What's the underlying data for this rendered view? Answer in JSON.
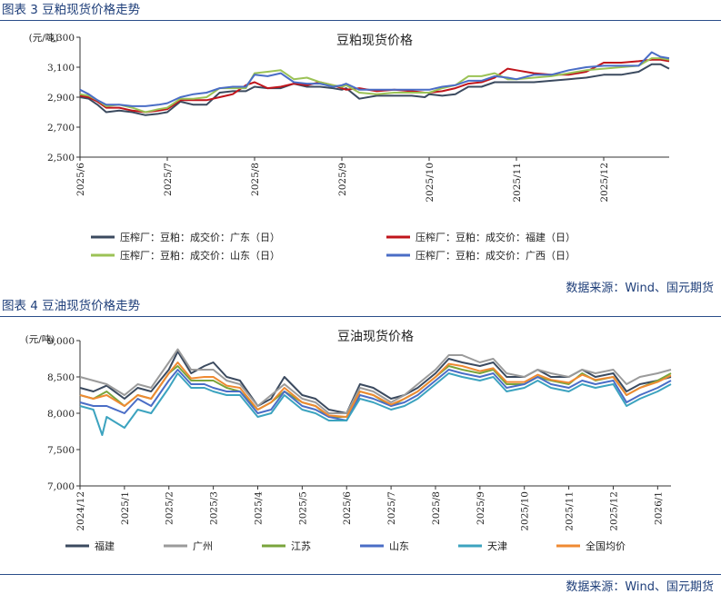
{
  "figures": [
    {
      "label": "图表 3 豆粕现货价格走势",
      "source": "数据来源：Wind、国元期货"
    },
    {
      "label": "图表 4 豆油现货价格走势",
      "source": "数据来源：Wind、国元期货"
    }
  ],
  "chart_data": [
    {
      "type": "line",
      "title": "豆粕现货价格",
      "ylabel": "(元/吨)",
      "ylim": [
        2500,
        3300
      ],
      "yticks": [
        "2,500",
        "2,700",
        "2,900",
        "3,100",
        "3,300"
      ],
      "x_ticks": [
        "2025/6",
        "2025/7",
        "2025/8",
        "2025/9",
        "2025/10",
        "2025/11",
        "2025/12"
      ],
      "x_tick_positions": [
        0,
        1,
        2,
        3,
        4,
        5,
        6
      ],
      "x_range": [
        0,
        6.75
      ],
      "legend_position": "bottom",
      "series": [
        {
          "name": "压榨厂：豆粕：成交价：广东（日）",
          "color": "#3b4a5f",
          "x": [
            0,
            0.1,
            0.2,
            0.3,
            0.45,
            0.6,
            0.75,
            0.9,
            1.0,
            1.15,
            1.3,
            1.45,
            1.6,
            1.75,
            1.9,
            2.0,
            2.15,
            2.3,
            2.45,
            2.6,
            2.75,
            2.9,
            3.0,
            3.05,
            3.2,
            3.4,
            3.6,
            3.8,
            3.95,
            4.0,
            4.15,
            4.3,
            4.45,
            4.6,
            4.75,
            4.9,
            5.0,
            5.2,
            5.4,
            5.6,
            5.8,
            6.0,
            6.2,
            6.4,
            6.55,
            6.65,
            6.75
          ],
          "y": [
            2900,
            2890,
            2850,
            2800,
            2810,
            2800,
            2780,
            2790,
            2800,
            2870,
            2850,
            2850,
            2930,
            2940,
            2940,
            2970,
            2960,
            2960,
            2990,
            2970,
            2970,
            2960,
            2950,
            2960,
            2890,
            2910,
            2910,
            2910,
            2900,
            2920,
            2910,
            2920,
            2970,
            2970,
            3000,
            3000,
            3000,
            3000,
            3010,
            3020,
            3030,
            3050,
            3050,
            3070,
            3120,
            3120,
            3090
          ]
        },
        {
          "name": "压榨厂：豆粕：成交价：福建（日）",
          "color": "#c0141b",
          "x": [
            0,
            0.1,
            0.2,
            0.3,
            0.45,
            0.6,
            0.75,
            0.9,
            1.0,
            1.15,
            1.3,
            1.45,
            1.6,
            1.75,
            1.9,
            2.0,
            2.15,
            2.3,
            2.45,
            2.6,
            2.75,
            2.9,
            3.0,
            3.05,
            3.2,
            3.4,
            3.6,
            3.8,
            3.95,
            4.0,
            4.15,
            4.3,
            4.45,
            4.6,
            4.75,
            4.9,
            5.0,
            5.2,
            5.4,
            5.6,
            5.8,
            6.0,
            6.2,
            6.4,
            6.55,
            6.65,
            6.75
          ],
          "y": [
            2910,
            2900,
            2870,
            2830,
            2830,
            2810,
            2800,
            2810,
            2820,
            2880,
            2880,
            2880,
            2900,
            2920,
            2980,
            3000,
            2960,
            2970,
            2990,
            2980,
            3000,
            2980,
            2960,
            2950,
            2960,
            2940,
            2950,
            2940,
            2930,
            2930,
            2940,
            2960,
            2990,
            3000,
            3030,
            3090,
            3080,
            3060,
            3050,
            3050,
            3070,
            3130,
            3130,
            3140,
            3150,
            3150,
            3140
          ]
        },
        {
          "name": "压榨厂：豆粕：成交价：山东（日）",
          "color": "#9bc256",
          "x": [
            0,
            0.1,
            0.2,
            0.3,
            0.45,
            0.6,
            0.75,
            0.9,
            1.0,
            1.15,
            1.3,
            1.45,
            1.6,
            1.75,
            1.9,
            2.0,
            2.15,
            2.3,
            2.45,
            2.6,
            2.75,
            2.9,
            3.0,
            3.05,
            3.2,
            3.4,
            3.6,
            3.8,
            3.95,
            4.0,
            4.15,
            4.3,
            4.45,
            4.6,
            4.75,
            4.9,
            5.0,
            5.2,
            5.4,
            5.6,
            5.8,
            6.0,
            6.2,
            6.4,
            6.55,
            6.65,
            6.75
          ],
          "y": [
            2920,
            2910,
            2880,
            2840,
            2850,
            2830,
            2800,
            2820,
            2830,
            2890,
            2890,
            2900,
            2960,
            2960,
            2960,
            3060,
            3070,
            3080,
            3020,
            3030,
            3000,
            2980,
            2970,
            2980,
            2930,
            2920,
            2930,
            2930,
            2930,
            2930,
            2960,
            2980,
            3040,
            3040,
            3060,
            3020,
            3020,
            3030,
            3040,
            3060,
            3080,
            3090,
            3100,
            3110,
            3160,
            3160,
            3150
          ]
        },
        {
          "name": "压榨厂：豆粕：成交价：广西（日）",
          "color": "#4a6dc6",
          "x": [
            0,
            0.1,
            0.2,
            0.3,
            0.45,
            0.6,
            0.75,
            0.9,
            1.0,
            1.15,
            1.3,
            1.45,
            1.6,
            1.75,
            1.9,
            2.0,
            2.15,
            2.3,
            2.45,
            2.6,
            2.75,
            2.9,
            3.0,
            3.05,
            3.2,
            3.4,
            3.6,
            3.8,
            3.95,
            4.0,
            4.15,
            4.3,
            4.45,
            4.6,
            4.75,
            4.9,
            5.0,
            5.2,
            5.4,
            5.6,
            5.8,
            6.0,
            6.2,
            6.4,
            6.55,
            6.65,
            6.75
          ],
          "y": [
            2950,
            2920,
            2880,
            2850,
            2850,
            2840,
            2840,
            2850,
            2860,
            2900,
            2920,
            2930,
            2960,
            2970,
            2970,
            3050,
            3040,
            3060,
            3000,
            2990,
            2990,
            2970,
            2980,
            2990,
            2950,
            2950,
            2950,
            2950,
            2950,
            2950,
            2970,
            2980,
            3010,
            3010,
            3040,
            3030,
            3020,
            3050,
            3050,
            3080,
            3100,
            3110,
            3110,
            3110,
            3200,
            3170,
            3160
          ]
        }
      ]
    },
    {
      "type": "line",
      "title": "豆油现货价格",
      "ylabel": "(元/吨)",
      "ylim": [
        7000,
        9000
      ],
      "yticks": [
        "7,000",
        "7,500",
        "8,000",
        "8,500",
        "9,000"
      ],
      "x_ticks": [
        "2024/12",
        "2025/1",
        "2025/2",
        "2025/3",
        "2025/4",
        "2025/5",
        "2025/6",
        "2025/7",
        "2025/8",
        "2025/9",
        "2025/10",
        "2025/11",
        "2025/12",
        "2026/1"
      ],
      "x_tick_positions": [
        0,
        1,
        2,
        3,
        4,
        5,
        6,
        7,
        8,
        9,
        10,
        11,
        12,
        13
      ],
      "x_range": [
        0,
        13.3
      ],
      "legend_position": "bottom",
      "series": [
        {
          "name": "福建",
          "color": "#3b4a5f",
          "x": [
            0,
            0.3,
            0.6,
            1.0,
            1.3,
            1.6,
            2.0,
            2.2,
            2.5,
            2.8,
            3.0,
            3.3,
            3.6,
            4.0,
            4.3,
            4.6,
            5.0,
            5.3,
            5.6,
            6.0,
            6.3,
            6.6,
            7.0,
            7.3,
            7.6,
            8.0,
            8.3,
            8.6,
            9.0,
            9.3,
            9.6,
            10.0,
            10.3,
            10.6,
            11.0,
            11.3,
            11.6,
            12.0,
            12.3,
            12.6,
            13.0,
            13.3
          ],
          "y": [
            8350,
            8300,
            8380,
            8200,
            8350,
            8300,
            8600,
            8850,
            8550,
            8650,
            8700,
            8500,
            8450,
            8100,
            8200,
            8500,
            8250,
            8200,
            8050,
            8000,
            8400,
            8350,
            8200,
            8250,
            8350,
            8550,
            8750,
            8700,
            8650,
            8700,
            8500,
            8500,
            8600,
            8500,
            8500,
            8600,
            8500,
            8550,
            8300,
            8400,
            8450,
            8500
          ]
        },
        {
          "name": "广州",
          "color": "#9b9b9b",
          "x": [
            0,
            0.3,
            0.6,
            1.0,
            1.3,
            1.6,
            2.0,
            2.2,
            2.5,
            2.8,
            3.0,
            3.3,
            3.6,
            4.0,
            4.3,
            4.6,
            5.0,
            5.3,
            5.6,
            6.0,
            6.3,
            6.6,
            7.0,
            7.3,
            7.6,
            8.0,
            8.3,
            8.6,
            9.0,
            9.3,
            9.6,
            10.0,
            10.3,
            10.6,
            11.0,
            11.3,
            11.6,
            12.0,
            12.3,
            12.6,
            13.0,
            13.3
          ],
          "y": [
            8500,
            8450,
            8400,
            8250,
            8400,
            8350,
            8700,
            8880,
            8600,
            8600,
            8600,
            8450,
            8400,
            8100,
            8250,
            8400,
            8200,
            8150,
            8000,
            8000,
            8350,
            8300,
            8150,
            8250,
            8400,
            8600,
            8800,
            8800,
            8700,
            8750,
            8550,
            8500,
            8600,
            8550,
            8500,
            8600,
            8550,
            8600,
            8400,
            8500,
            8550,
            8600
          ]
        },
        {
          "name": "江苏",
          "color": "#7aa43c",
          "x": [
            0,
            0.3,
            0.6,
            1.0,
            1.3,
            1.6,
            2.0,
            2.2,
            2.5,
            2.8,
            3.0,
            3.3,
            3.6,
            4.0,
            4.3,
            4.6,
            5.0,
            5.3,
            5.6,
            6.0,
            6.3,
            6.6,
            7.0,
            7.3,
            7.6,
            8.0,
            8.3,
            8.6,
            9.0,
            9.3,
            9.6,
            10.0,
            10.3,
            10.6,
            11.0,
            11.3,
            11.6,
            12.0,
            12.3,
            12.6,
            13.0,
            13.3
          ],
          "y": [
            8250,
            8200,
            8300,
            8100,
            8250,
            8200,
            8550,
            8650,
            8450,
            8450,
            8450,
            8350,
            8300,
            8050,
            8150,
            8300,
            8150,
            8100,
            7950,
            7950,
            8300,
            8250,
            8100,
            8200,
            8300,
            8500,
            8650,
            8600,
            8550,
            8600,
            8400,
            8400,
            8500,
            8450,
            8400,
            8550,
            8450,
            8500,
            8250,
            8350,
            8450,
            8550
          ]
        },
        {
          "name": "山东",
          "color": "#4a6dc6",
          "x": [
            0,
            0.3,
            0.6,
            1.0,
            1.3,
            1.6,
            2.0,
            2.2,
            2.5,
            2.8,
            3.0,
            3.3,
            3.6,
            4.0,
            4.3,
            4.6,
            5.0,
            5.3,
            5.6,
            6.0,
            6.3,
            6.6,
            7.0,
            7.3,
            7.6,
            8.0,
            8.3,
            8.6,
            9.0,
            9.3,
            9.6,
            10.0,
            10.3,
            10.6,
            11.0,
            11.3,
            11.6,
            12.0,
            12.3,
            12.6,
            13.0,
            13.3
          ],
          "y": [
            8150,
            8100,
            8100,
            8000,
            8200,
            8100,
            8450,
            8600,
            8400,
            8400,
            8350,
            8300,
            8300,
            8000,
            8050,
            8300,
            8100,
            8050,
            7950,
            7900,
            8250,
            8200,
            8100,
            8150,
            8250,
            8450,
            8600,
            8550,
            8500,
            8550,
            8350,
            8400,
            8500,
            8400,
            8350,
            8450,
            8400,
            8450,
            8150,
            8250,
            8350,
            8450
          ]
        },
        {
          "name": "天津",
          "color": "#3ca3bf",
          "x": [
            0,
            0.3,
            0.5,
            0.6,
            1.0,
            1.3,
            1.6,
            2.0,
            2.2,
            2.5,
            2.8,
            3.0,
            3.3,
            3.6,
            4.0,
            4.3,
            4.6,
            5.0,
            5.3,
            5.6,
            6.0,
            6.3,
            6.6,
            7.0,
            7.3,
            7.6,
            8.0,
            8.3,
            8.6,
            9.0,
            9.3,
            9.6,
            10.0,
            10.3,
            10.6,
            11.0,
            11.3,
            11.6,
            12.0,
            12.3,
            12.6,
            13.0,
            13.3
          ],
          "y": [
            8100,
            8050,
            7700,
            7950,
            7800,
            8050,
            8000,
            8350,
            8550,
            8350,
            8350,
            8300,
            8250,
            8250,
            7950,
            8000,
            8250,
            8050,
            8000,
            7900,
            7900,
            8200,
            8150,
            8050,
            8100,
            8200,
            8400,
            8550,
            8500,
            8450,
            8500,
            8300,
            8350,
            8450,
            8350,
            8300,
            8400,
            8350,
            8400,
            8100,
            8200,
            8300,
            8400
          ]
        },
        {
          "name": "全国均价",
          "color": "#ef8a32",
          "x": [
            0,
            0.3,
            0.6,
            1.0,
            1.3,
            1.6,
            2.0,
            2.2,
            2.5,
            2.8,
            3.0,
            3.3,
            3.6,
            4.0,
            4.3,
            4.6,
            5.0,
            5.3,
            5.6,
            6.0,
            6.3,
            6.6,
            7.0,
            7.3,
            7.6,
            8.0,
            8.3,
            8.6,
            9.0,
            9.3,
            9.6,
            10.0,
            10.3,
            10.6,
            11.0,
            11.3,
            11.6,
            12.0,
            12.3,
            12.6,
            13.0,
            13.3
          ],
          "y": [
            8250,
            8200,
            8250,
            8100,
            8250,
            8200,
            8550,
            8700,
            8480,
            8500,
            8500,
            8380,
            8350,
            8050,
            8150,
            8350,
            8150,
            8100,
            7970,
            7950,
            8300,
            8250,
            8120,
            8200,
            8300,
            8500,
            8680,
            8650,
            8580,
            8620,
            8430,
            8430,
            8530,
            8460,
            8420,
            8530,
            8460,
            8500,
            8250,
            8350,
            8430,
            8520
          ]
        }
      ]
    }
  ]
}
